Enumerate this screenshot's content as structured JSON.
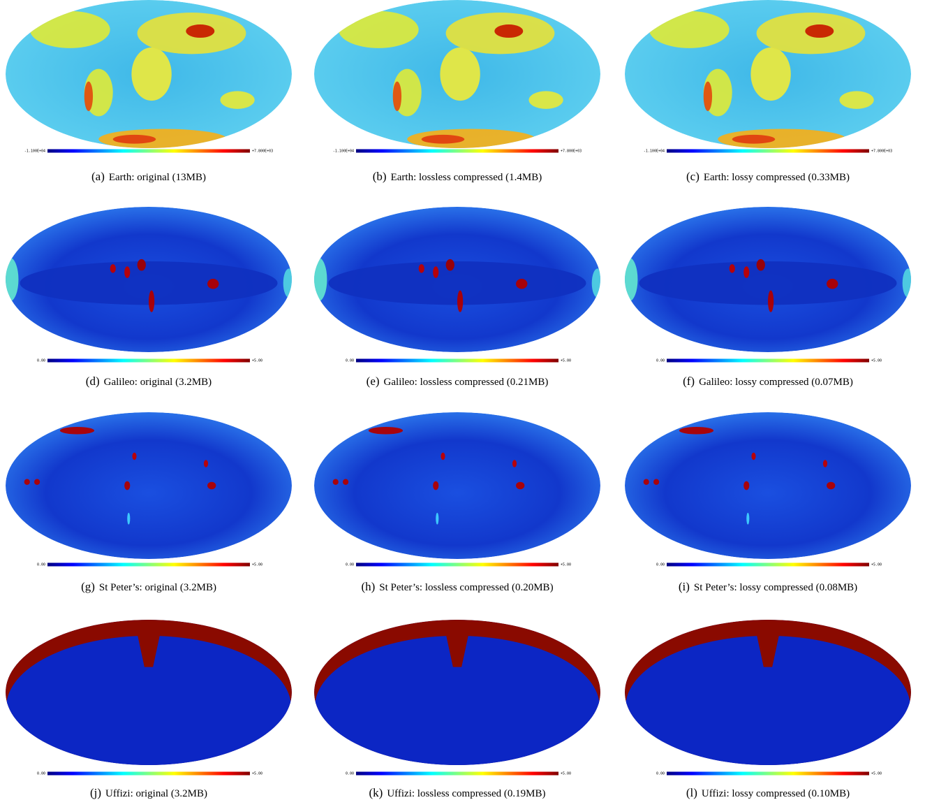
{
  "panels": [
    {
      "label": "(a)",
      "caption": "Earth: original (13MB)",
      "colorbar_min": "-1.100E+04",
      "colorbar_max": "+7.800E+03"
    },
    {
      "label": "(b)",
      "caption": "Earth: lossless compressed (1.4MB)",
      "colorbar_min": "-1.100E+04",
      "colorbar_max": "+7.800E+03"
    },
    {
      "label": "(c)",
      "caption": "Earth: lossy compressed (0.33MB)",
      "colorbar_min": "-1.100E+04",
      "colorbar_max": "+7.800E+03"
    },
    {
      "label": "(d)",
      "caption": "Galileo: original (3.2MB)",
      "colorbar_min": "0.00",
      "colorbar_max": "+5.00"
    },
    {
      "label": "(e)",
      "caption": "Galileo: lossless compressed (0.21MB)",
      "colorbar_min": "0.00",
      "colorbar_max": "+5.00"
    },
    {
      "label": "(f)",
      "caption": "Galileo: lossy compressed (0.07MB)",
      "colorbar_min": "0.00",
      "colorbar_max": "+5.00"
    },
    {
      "label": "(g)",
      "caption": "St Peter’s: original (3.2MB)",
      "colorbar_min": "0.00",
      "colorbar_max": "+5.00"
    },
    {
      "label": "(h)",
      "caption": "St Peter’s: lossless compressed (0.20MB)",
      "colorbar_min": "0.00",
      "colorbar_max": "+5.00"
    },
    {
      "label": "(i)",
      "caption": "St Peter’s: lossy compressed (0.08MB)",
      "colorbar_min": "0.00",
      "colorbar_max": "+5.00"
    },
    {
      "label": "(j)",
      "caption": "Uffizi: original (3.2MB)",
      "colorbar_min": "0.00",
      "colorbar_max": "+5.00"
    },
    {
      "label": "(k)",
      "caption": "Uffizi: lossless compressed (0.19MB)",
      "colorbar_min": "0.00",
      "colorbar_max": "+5.00"
    },
    {
      "label": "(l)",
      "caption": "Uffizi: lossy compressed (0.10MB)",
      "colorbar_min": "0.00",
      "colorbar_max": "+5.00"
    }
  ]
}
